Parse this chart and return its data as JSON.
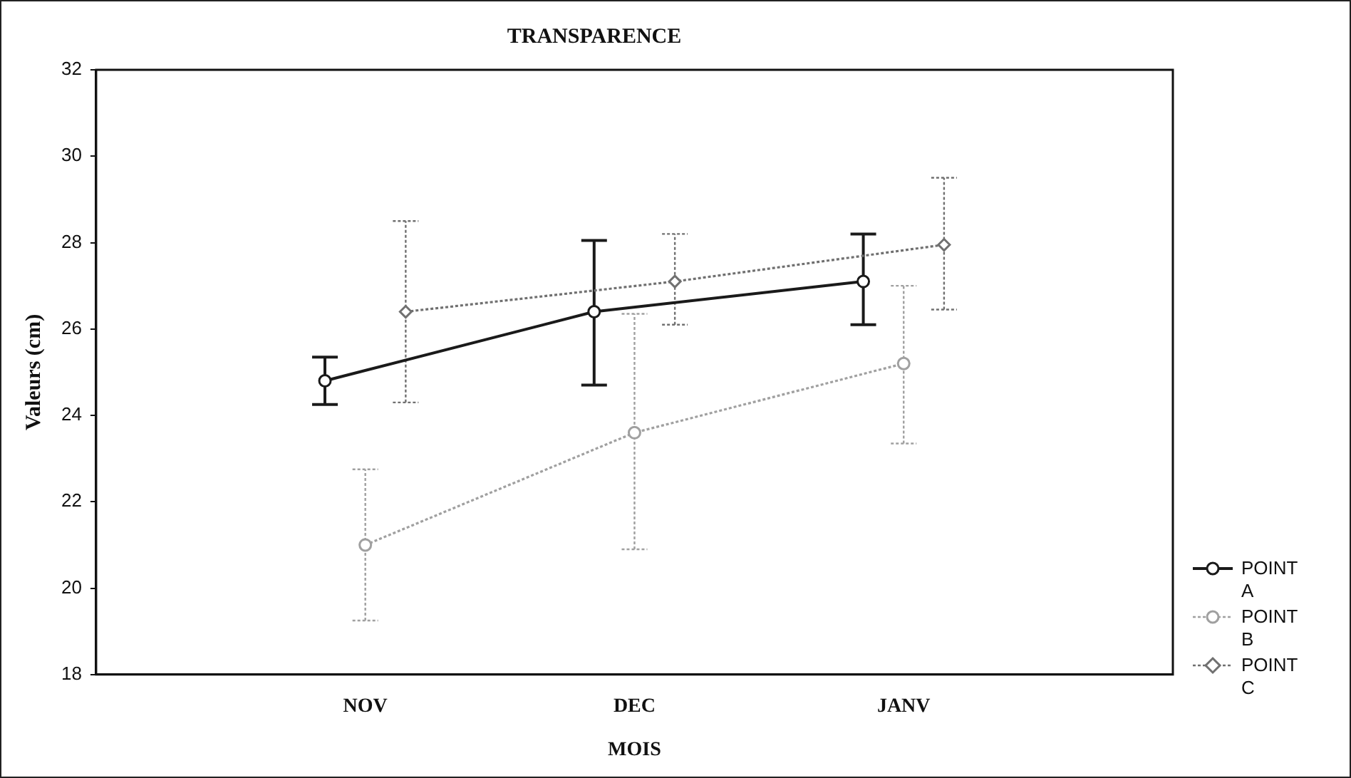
{
  "chart_data": {
    "type": "line",
    "title": "TRANSPARENCE",
    "xlabel": "MOIS",
    "ylabel": "Valeurs (cm)",
    "categories": [
      "NOV",
      "DEC",
      "JANV"
    ],
    "series": [
      {
        "name": "POINT A",
        "color": "#1a1a1a",
        "marker": "circle",
        "line_style": "solid",
        "values": [
          24.8,
          26.4,
          27.1
        ],
        "errors": [
          [
            24.25,
            25.35
          ],
          [
            24.7,
            28.05
          ],
          [
            26.1,
            28.2
          ]
        ]
      },
      {
        "name": "POINT B",
        "color": "#a0a0a0",
        "marker": "circle",
        "line_style": "dotted",
        "values": [
          21.0,
          23.6,
          25.2
        ],
        "errors": [
          [
            19.25,
            22.75
          ],
          [
            20.9,
            26.35
          ],
          [
            23.35,
            27.0
          ]
        ]
      },
      {
        "name": "POINT C",
        "color": "#707070",
        "marker": "diamond",
        "line_style": "dotted",
        "values": [
          26.4,
          27.1,
          27.95
        ],
        "errors": [
          [
            24.3,
            28.5
          ],
          [
            26.1,
            28.2
          ],
          [
            26.45,
            29.5
          ]
        ]
      }
    ],
    "ylim": [
      18,
      32
    ],
    "yticks": [
      18,
      20,
      22,
      24,
      26,
      28,
      30,
      32
    ],
    "grid": false,
    "legend": "right"
  }
}
